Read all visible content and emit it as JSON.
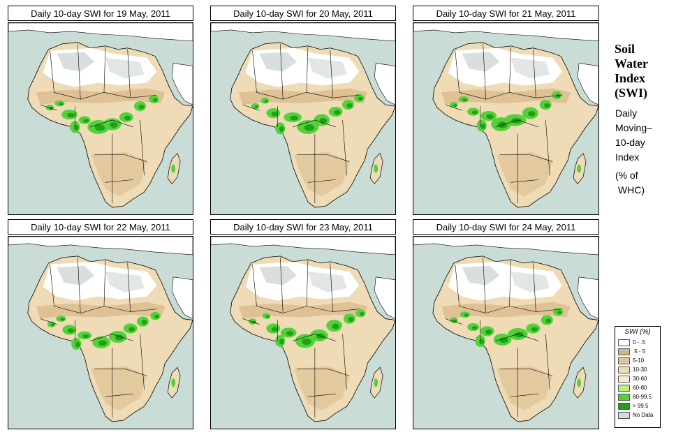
{
  "panels": [
    {
      "title": "Daily 10-day SWI for  19 May, 2011"
    },
    {
      "title": "Daily 10-day SWI for  20 May, 2011"
    },
    {
      "title": "Daily 10-day SWI for  21 May, 2011"
    },
    {
      "title": "Daily 10-day SWI for  22 May, 2011"
    },
    {
      "title": "Daily 10-day SWI for  23 May, 2011"
    },
    {
      "title": "Daily 10-day SWI for  24 May, 2011"
    }
  ],
  "side": {
    "title_lines": [
      "Soil",
      "Water",
      "Index",
      "(SWI)"
    ],
    "subtitle_lines": [
      "Daily",
      "Moving–",
      "10-day",
      "Index"
    ],
    "unit_lines": [
      "(% of",
      " WHC)"
    ]
  },
  "legend": {
    "title": "SWI (%)",
    "items": [
      {
        "label": "0 - .5",
        "color": "#ffffff"
      },
      {
        "label": ".5 - 5",
        "color": "#d2b48c"
      },
      {
        "label": "5-10",
        "color": "#dfc39a"
      },
      {
        "label": "10-30",
        "color": "#efdcb6"
      },
      {
        "label": "30-60",
        "color": "#f7ecd2"
      },
      {
        "label": "60-80",
        "color": "#b8f27a"
      },
      {
        "label": "80-99.5",
        "color": "#53d13a"
      },
      {
        "label": "> 99.5",
        "color": "#1fa015"
      },
      {
        "label": "No Data",
        "color": "#d5dbdc"
      }
    ]
  },
  "colors": {
    "ocean": "#c9dcd5",
    "land": "#efdcb6",
    "dry": "#d8b98a",
    "green": "#53d13a",
    "dark_green": "#1fa015",
    "no_data": "#d5dbdc",
    "white_zone": "#ffffff"
  }
}
